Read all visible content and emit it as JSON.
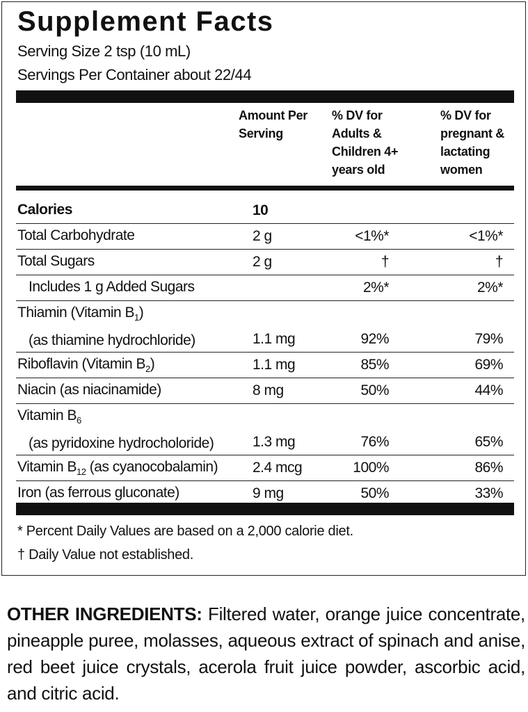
{
  "title": "Supplement Facts",
  "serving_size": "Serving Size 2 tsp (10 mL)",
  "servings_per_container": "Servings Per Container about 22/44",
  "headers": [
    "Amount Per Serving",
    "% DV for Adults & Children 4+ years old",
    "% DV for pregnant & lactating women"
  ],
  "rows": [
    {
      "name": [
        [
          "Calories"
        ]
      ],
      "amount": "10",
      "bold": true
    },
    {
      "name": [
        [
          "Total Carbohydrate"
        ]
      ],
      "amount": "2 g",
      "dv_adults": "<1%*",
      "dv_pregnant": "<1%*"
    },
    {
      "name": [
        [
          "Total Sugars"
        ]
      ],
      "amount": "2 g",
      "dv_adults": "†",
      "dv_pregnant": "†"
    },
    {
      "name": [
        [
          "Includes 1 g Added Sugars"
        ]
      ],
      "indent": true,
      "dv_adults": "2%*",
      "dv_pregnant": "2%*"
    },
    {
      "name": [
        [
          "Thiamin (Vitamin B",
          {
            "sub": "1"
          },
          ")"
        ],
        [
          "(as thiamine hydrochloride)"
        ]
      ],
      "amount": "1.1 mg",
      "dv_adults": "92%",
      "dv_pregnant": "79%"
    },
    {
      "name": [
        [
          "Riboflavin (Vitamin B",
          {
            "sub": "2"
          },
          ")"
        ]
      ],
      "amount": "1.1 mg",
      "dv_adults": "85%",
      "dv_pregnant": "69%"
    },
    {
      "name": [
        [
          "Niacin (as niacinamide)"
        ]
      ],
      "amount": "8 mg",
      "dv_adults": "50%",
      "dv_pregnant": "44%"
    },
    {
      "name": [
        [
          "Vitamin B",
          {
            "sub": "6"
          }
        ],
        [
          "(as pyridoxine hydrocholoride)"
        ]
      ],
      "amount": "1.3 mg",
      "dv_adults": "76%",
      "dv_pregnant": "65%"
    },
    {
      "name": [
        [
          "Vitamin B",
          {
            "sub": "12"
          },
          " (as cyanocobalamin)"
        ]
      ],
      "amount": "2.4 mcg",
      "dv_adults": "100%",
      "dv_pregnant": "86%"
    },
    {
      "name": [
        [
          "Iron (as ferrous gluconate)"
        ]
      ],
      "amount": "9 mg",
      "dv_adults": "50%",
      "dv_pregnant": "33%"
    }
  ],
  "footnotes": [
    "* Percent Daily Values are based on a 2,000 calorie diet.",
    "† Daily Value not established."
  ],
  "other_ingredients": {
    "label": "OTHER INGREDIENTS:",
    "text": "Filtered water, orange juice concentrate, pineapple puree, molasses, aqueous extract of spinach and anise, red beet juice crystals, acerola fruit juice powder, ascorbic acid, and citric acid."
  }
}
